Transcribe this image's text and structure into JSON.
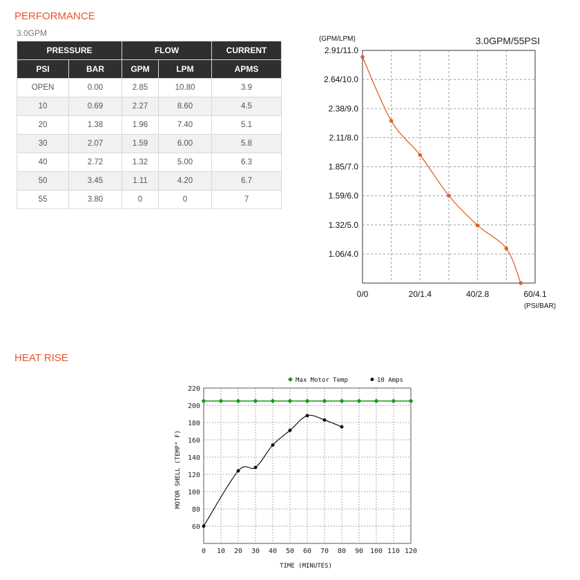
{
  "performance": {
    "title": "PERFORMANCE",
    "subtitle": "3.0GPM",
    "table": {
      "group_headers": [
        "PRESSURE",
        "FLOW",
        "CURRENT"
      ],
      "headers": [
        "PSI",
        "BAR",
        "GPM",
        "LPM",
        "APMS"
      ],
      "rows": [
        [
          "OPEN",
          "0.00",
          "2.85",
          "10.80",
          "3.9"
        ],
        [
          "10",
          "0.69",
          "2.27",
          "8.60",
          "4.5"
        ],
        [
          "20",
          "1.38",
          "1.96",
          "7.40",
          "5.1"
        ],
        [
          "30",
          "2.07",
          "1.59",
          "6.00",
          "5.8"
        ],
        [
          "40",
          "2.72",
          "1.32",
          "5.00",
          "6.3"
        ],
        [
          "50",
          "3.45",
          "1.11",
          "4.20",
          "6.7"
        ],
        [
          "55",
          "3.80",
          "0",
          "0",
          "7"
        ]
      ]
    }
  },
  "heat_rise": {
    "title": "HEAT RISE"
  },
  "chart_data": [
    {
      "type": "line",
      "title": "3.0GPM/55PSI",
      "ylabel": "(GPM/LPM)",
      "xlabel": "(PSI/BAR)",
      "y_tick_labels": [
        "2.91/11.0",
        "2.64/10.0",
        "2.38/9.0",
        "2.11/8.0",
        "1.85/7.0",
        "1.59/6.0",
        "1.32/5.0",
        "1.06/4.0"
      ],
      "x_tick_labels": [
        "0/0",
        "20/1.4",
        "40/2.8",
        "60/4.1"
      ],
      "xlim": [
        0,
        55
      ],
      "ylim": [
        0,
        2.91
      ],
      "grid": true,
      "color": "#e0602a",
      "series": [
        {
          "x": [
            0,
            10,
            20,
            30,
            40,
            50,
            55
          ],
          "y": [
            2.85,
            2.27,
            1.96,
            1.59,
            1.32,
            1.11,
            0
          ]
        }
      ]
    },
    {
      "type": "line",
      "xlabel": "TIME (MINUTES)",
      "ylabel": "MOTOR SHELL (TEMP° F)",
      "xlim": [
        0,
        120
      ],
      "ylim": [
        40,
        220
      ],
      "x_ticks": [
        0,
        10,
        20,
        30,
        40,
        50,
        60,
        70,
        80,
        90,
        100,
        110,
        120
      ],
      "y_ticks": [
        60,
        80,
        100,
        120,
        140,
        160,
        180,
        200,
        220
      ],
      "grid": true,
      "legend_position": "top",
      "series": [
        {
          "name": "Max Motor Temp",
          "color": "#1a9a1a",
          "x": [
            0,
            10,
            20,
            30,
            40,
            50,
            60,
            70,
            80,
            90,
            100,
            110,
            120
          ],
          "y": [
            205,
            205,
            205,
            205,
            205,
            205,
            205,
            205,
            205,
            205,
            205,
            205,
            205
          ]
        },
        {
          "name": "10 Amps",
          "color": "#111111",
          "x": [
            0,
            20,
            30,
            40,
            50,
            60,
            70,
            80
          ],
          "y": [
            60,
            124,
            128,
            154,
            171,
            188,
            183,
            175
          ]
        }
      ]
    }
  ]
}
